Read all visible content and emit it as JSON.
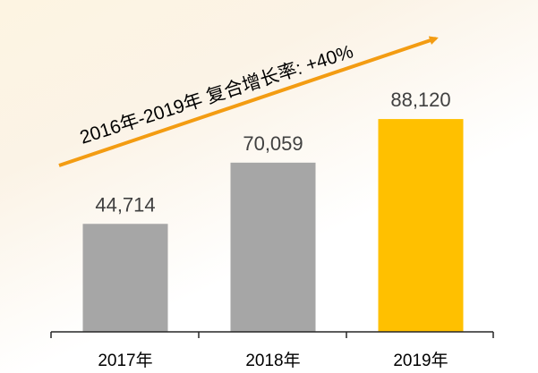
{
  "chart_data": {
    "type": "bar",
    "categories": [
      "2017年",
      "2018年",
      "2019年"
    ],
    "values": [
      44714,
      70059,
      88120
    ],
    "value_labels": [
      "44,714",
      "70,059",
      "88,120"
    ],
    "ylim": [
      0,
      110000
    ],
    "grid": false,
    "legend": "none",
    "annotation": "2016年-2019年 复合增长率: +40%",
    "colors": {
      "bars": [
        "#a6a6a6",
        "#a6a6a6",
        "#ffc000"
      ],
      "arrow": "#f39c12",
      "axis": "#262626",
      "background_tint": "#fdf4e2"
    }
  }
}
